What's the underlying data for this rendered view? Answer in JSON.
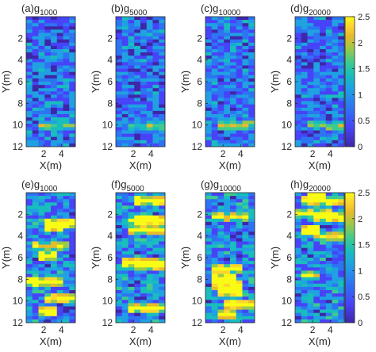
{
  "colors": {
    "colormap": [
      "#3e26a8",
      "#4743f8",
      "#2d74f3",
      "#1fa1e2",
      "#18bdbd",
      "#3fcb8f",
      "#99c94a",
      "#e7ba2d",
      "#fcd62f",
      "#f9fb15"
    ],
    "axis": "#262626",
    "background": "#ffffff"
  },
  "figure": {
    "ylabel": "Y(m)",
    "xlabel": "X(m)",
    "yticks": [
      "2",
      "4",
      "6",
      "8",
      "10",
      "12"
    ],
    "xticks": [
      "2",
      "4"
    ]
  },
  "chart_data": [
    {
      "type": "heatmap",
      "id": "a",
      "title": "(a)g",
      "subscript": "1000",
      "row": "top",
      "xlim": [
        0,
        5.6
      ],
      "ylim": [
        0,
        12
      ],
      "value_range": [
        0,
        2.5
      ],
      "colorbar": false,
      "pattern": "low-variance"
    },
    {
      "type": "heatmap",
      "id": "b",
      "title": "(b)g",
      "subscript": "5000",
      "row": "top",
      "xlim": [
        0,
        5.6
      ],
      "ylim": [
        0,
        12
      ],
      "value_range": [
        0,
        2.5
      ],
      "colorbar": false,
      "pattern": "low-variance"
    },
    {
      "type": "heatmap",
      "id": "c",
      "title": "(c)g",
      "subscript": "10000",
      "row": "top",
      "xlim": [
        0,
        5.6
      ],
      "ylim": [
        0,
        12
      ],
      "value_range": [
        0,
        2.5
      ],
      "colorbar": false,
      "pattern": "low-variance"
    },
    {
      "type": "heatmap",
      "id": "d",
      "title": "(d)g",
      "subscript": "20000",
      "row": "top",
      "xlim": [
        0,
        5.6
      ],
      "ylim": [
        0,
        12
      ],
      "value_range": [
        0,
        2.5
      ],
      "colorbar": true,
      "colorbar_ticks": [
        "0",
        "0.5",
        "1",
        "1.5",
        "2",
        "2.5"
      ],
      "pattern": "low-variance"
    },
    {
      "type": "heatmap",
      "id": "e",
      "title": "(e)g",
      "subscript": "1000",
      "row": "bottom",
      "xlim": [
        0,
        5.6
      ],
      "ylim": [
        0,
        12
      ],
      "value_range": [
        0,
        2.5
      ],
      "colorbar": false,
      "pattern": "high-variance"
    },
    {
      "type": "heatmap",
      "id": "f",
      "title": "(f)g",
      "subscript": "5000",
      "row": "bottom",
      "xlim": [
        0,
        5.6
      ],
      "ylim": [
        0,
        12
      ],
      "value_range": [
        0,
        2.5
      ],
      "colorbar": false,
      "pattern": "high-variance"
    },
    {
      "type": "heatmap",
      "id": "g",
      "title": "(g)g",
      "subscript": "10000",
      "row": "bottom",
      "xlim": [
        0,
        5.6
      ],
      "ylim": [
        0,
        12
      ],
      "value_range": [
        0,
        2.5
      ],
      "colorbar": false,
      "pattern": "high-variance"
    },
    {
      "type": "heatmap",
      "id": "h",
      "title": "(h)g",
      "subscript": "20000",
      "row": "bottom",
      "xlim": [
        0,
        5.6
      ],
      "ylim": [
        0,
        12
      ],
      "value_range": [
        0,
        2.5
      ],
      "colorbar": true,
      "colorbar_ticks": [
        "0",
        "0.5",
        "1",
        "1.5",
        "2",
        "2.5"
      ],
      "pattern": "high-variance"
    }
  ]
}
